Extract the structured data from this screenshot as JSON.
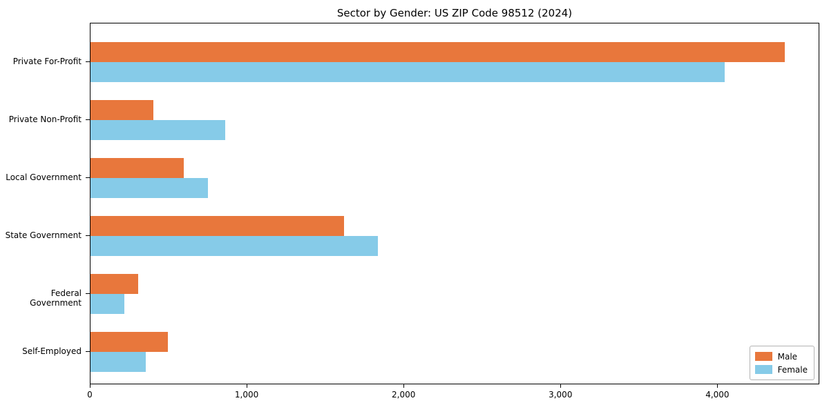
{
  "chart_data": {
    "type": "bar",
    "orientation": "horizontal",
    "title": "Sector by Gender: US ZIP Code 98512 (2024)",
    "categories": [
      "Private For-Profit",
      "Private Non-Profit",
      "Local Government",
      "State Government",
      "Federal Government",
      "Self-Employed"
    ],
    "series": [
      {
        "name": "Male",
        "color": "#e8773c",
        "values": [
          4425,
          400,
          595,
          1615,
          305,
          495
        ]
      },
      {
        "name": "Female",
        "color": "#86cbe8",
        "values": [
          4040,
          860,
          750,
          1830,
          215,
          350
        ]
      }
    ],
    "xlabel": "",
    "ylabel": "",
    "x_ticks": [
      "0",
      "1,000",
      "2,000",
      "3,000",
      "4,000"
    ],
    "x_tick_values": [
      0,
      1000,
      2000,
      3000,
      4000
    ],
    "xlim": [
      0,
      4650
    ],
    "grid": false,
    "legend_position": "lower right"
  }
}
